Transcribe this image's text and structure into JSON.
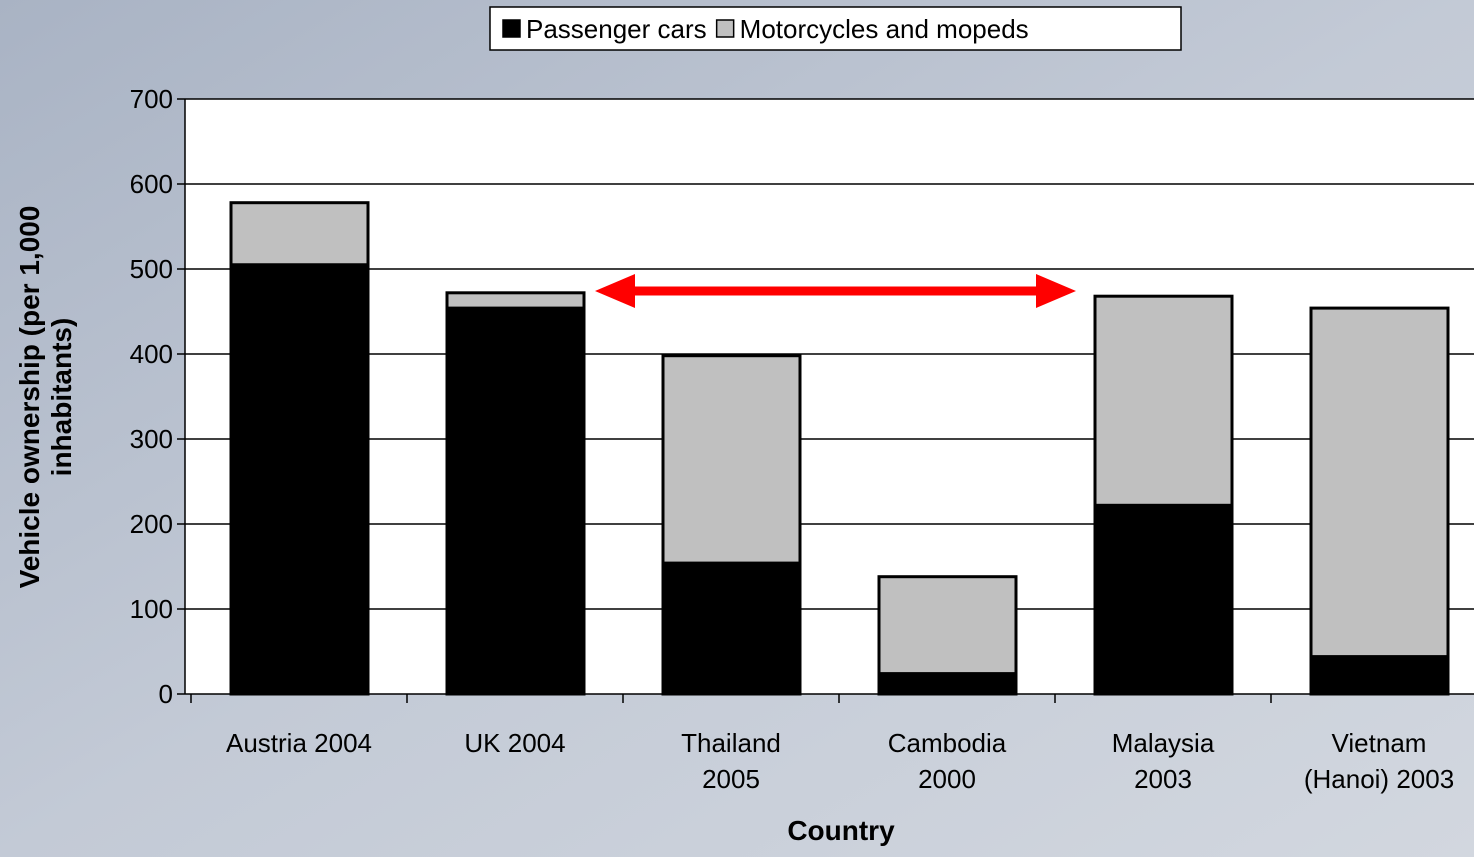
{
  "chart_data": {
    "type": "stacked_bar",
    "categories": [
      "Austria 2004",
      "UK 2004",
      "Thailand\n2005",
      "Cambodia\n2000",
      "Malaysia\n2003",
      "Vietnam\n(Hanoi) 2003"
    ],
    "series": [
      {
        "name": "Passenger cars",
        "color": "#000000",
        "values": [
          505,
          454,
          154,
          24,
          222,
          44
        ]
      },
      {
        "name": "Motorcycles and mopeds",
        "color": "#c0c0c0",
        "values": [
          73,
          18,
          244,
          114,
          246,
          410
        ]
      }
    ],
    "x_label": "Country",
    "y_label": "Vehicle ownership (per 1,000\ninhabitants)",
    "ylim": [
      0,
      700
    ],
    "yticks": [
      0,
      100,
      200,
      300,
      400,
      500,
      600,
      700
    ],
    "grid": true
  }
}
